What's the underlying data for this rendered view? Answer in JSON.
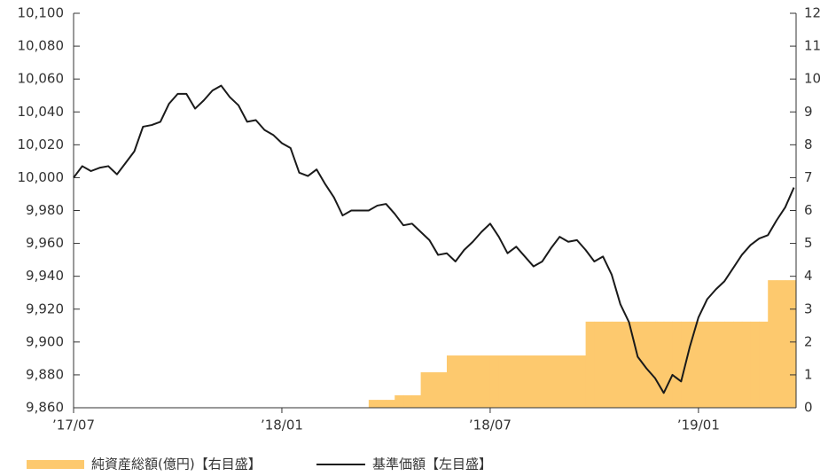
{
  "chart_data": {
    "type": "combo",
    "categories": [
      "’17/07",
      null,
      null,
      null,
      null,
      null,
      null,
      null,
      null,
      null,
      null,
      null,
      null,
      null,
      null,
      null,
      null,
      null,
      null,
      null,
      null,
      null,
      null,
      null,
      "’18/01",
      null,
      null,
      null,
      null,
      null,
      null,
      null,
      null,
      null,
      null,
      null,
      null,
      null,
      null,
      null,
      null,
      null,
      null,
      null,
      null,
      null,
      null,
      null,
      "’18/07",
      null,
      null,
      null,
      null,
      null,
      null,
      null,
      null,
      null,
      null,
      null,
      null,
      null,
      null,
      null,
      null,
      null,
      null,
      null,
      null,
      null,
      null,
      null,
      "’19/01",
      null,
      null,
      null,
      null,
      null,
      null,
      null,
      null,
      null,
      null,
      null
    ],
    "series": [
      {
        "name": "純資産総額(億円)【右目盛】",
        "type": "area",
        "axis": "y2",
        "color": "#fdc96e",
        "values": [
          null,
          null,
          null,
          null,
          null,
          null,
          null,
          null,
          null,
          null,
          null,
          null,
          null,
          null,
          null,
          null,
          null,
          null,
          null,
          null,
          null,
          null,
          null,
          null,
          null,
          null,
          null,
          null,
          null,
          null,
          null,
          null,
          null,
          null,
          0.24,
          0.24,
          0.24,
          0.38,
          0.38,
          0.38,
          1.08,
          1.08,
          1.08,
          1.59,
          1.59,
          1.59,
          1.59,
          1.59,
          1.59,
          1.59,
          1.59,
          1.59,
          1.59,
          1.59,
          1.59,
          1.59,
          1.59,
          1.59,
          1.59,
          2.62,
          2.62,
          2.62,
          2.62,
          2.62,
          2.62,
          2.62,
          2.62,
          2.62,
          2.62,
          2.62,
          2.62,
          2.62,
          2.62,
          2.62,
          2.62,
          2.62,
          2.62,
          2.62,
          2.62,
          2.62,
          3.88,
          3.88,
          3.88,
          3.88
        ]
      },
      {
        "name": "基準価額【左目盛】",
        "type": "line",
        "color": "#1a1a1a",
        "values": [
          10000,
          10007,
          10004,
          10006,
          10007,
          10002,
          10009,
          10016,
          10031,
          10032,
          10034,
          10045,
          10051,
          10051,
          10042,
          10047,
          10053,
          10056,
          10049,
          10044,
          10034,
          10035,
          10029,
          10026,
          10021,
          10018,
          10003,
          10001,
          10005,
          9996,
          9988,
          9977,
          9980,
          9980,
          9980,
          9983,
          9984,
          9978,
          9971,
          9972,
          9967,
          9962,
          9953,
          9954,
          9949,
          9956,
          9961,
          9967,
          9972,
          9964,
          9954,
          9958,
          9952,
          9946,
          9949,
          9957,
          9964,
          9961,
          9962,
          9956,
          9949,
          9952,
          9941,
          9923,
          9912,
          9891,
          9884,
          9878,
          9869,
          9880,
          9876,
          9897,
          9915,
          9926,
          9932,
          9937,
          9945,
          9953,
          9959,
          9963,
          9965,
          9974,
          9982,
          9994
        ]
      }
    ],
    "ylim": [
      9860,
      10100
    ],
    "yticks": [
      {
        "value": 9860,
        "label": "9,860"
      },
      {
        "value": 9880,
        "label": "9,880"
      },
      {
        "value": 9900,
        "label": "9,900"
      },
      {
        "value": 9920,
        "label": "9,920"
      },
      {
        "value": 9940,
        "label": "9,940"
      },
      {
        "value": 9960,
        "label": "9,960"
      },
      {
        "value": 9980,
        "label": "9,980"
      },
      {
        "value": 10000,
        "label": "10,000"
      },
      {
        "value": 10020,
        "label": "10,020"
      },
      {
        "value": 10040,
        "label": "10,040"
      },
      {
        "value": 10060,
        "label": "10,060"
      },
      {
        "value": 10080,
        "label": "10,080"
      },
      {
        "value": 10100,
        "label": "10,100"
      }
    ],
    "y2lim": [
      0,
      12
    ],
    "y2ticks": [
      0,
      1,
      2,
      3,
      4,
      5,
      6,
      7,
      8,
      9,
      10,
      11,
      12
    ],
    "legend": "bottom-left"
  }
}
